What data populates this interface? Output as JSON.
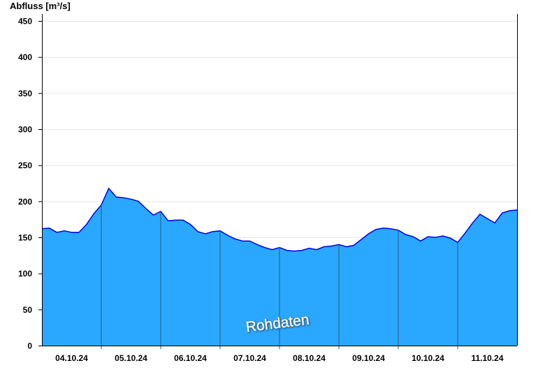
{
  "chart_data": {
    "type": "area",
    "ylabel": "Abfluss [m³/s]",
    "ylim": [
      0,
      450
    ],
    "yticks": [
      0,
      50,
      100,
      150,
      200,
      250,
      300,
      350,
      400,
      450
    ],
    "xlim": [
      "04.10.24 00:00",
      "12.10.24 00:00"
    ],
    "xtick_labels": [
      "04.10.24",
      "05.10.24",
      "06.10.24",
      "07.10.24",
      "08.10.24",
      "09.10.24",
      "10.10.24",
      "11.10.24"
    ],
    "grid": true,
    "watermark": "Rohdaten",
    "colors": {
      "fill": "#2aa8ff",
      "line": "#0000ee",
      "day_separator": "#2a5a7a",
      "grid": "#e6e6e6"
    },
    "sampling_hours": 3,
    "series": [
      {
        "values": [
          162,
          163,
          157,
          159,
          157,
          157,
          168,
          183,
          195,
          218,
          206,
          205,
          203,
          200,
          190,
          181,
          186,
          173,
          174,
          174,
          168,
          158,
          155,
          158,
          159,
          153,
          148,
          145,
          145,
          140,
          136,
          133,
          136,
          132,
          131,
          132,
          135,
          133,
          137,
          138,
          140,
          137,
          139,
          147,
          155,
          161,
          163,
          162,
          160,
          154,
          151,
          145,
          151,
          150,
          152,
          149,
          143,
          156,
          170,
          182,
          176,
          170,
          184,
          187,
          188
        ]
      }
    ]
  }
}
